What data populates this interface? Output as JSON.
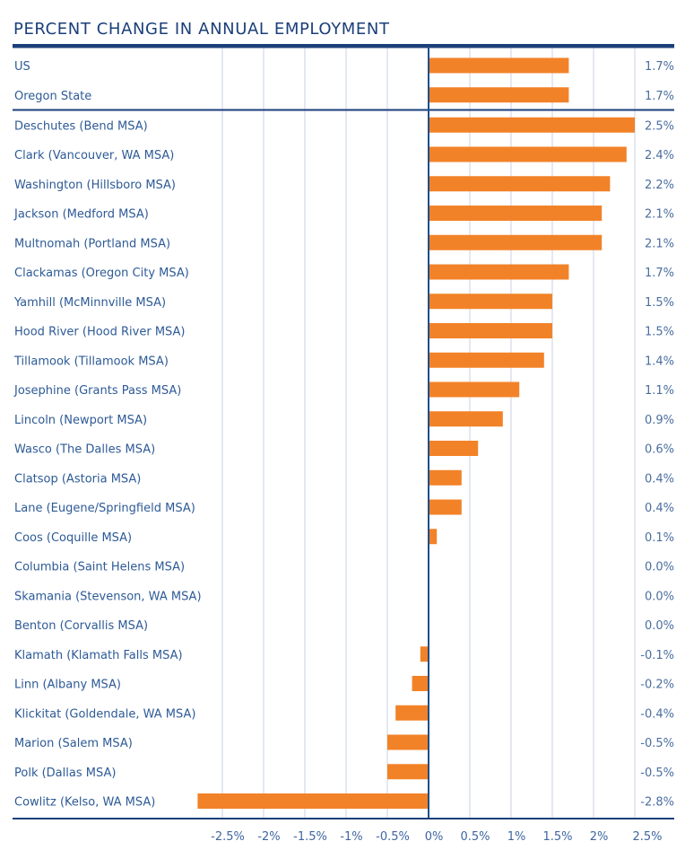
{
  "chart_data": {
    "type": "bar",
    "orientation": "horizontal",
    "title": "PERCENT CHANGE IN ANNUAL EMPLOYMENT",
    "xlabel": "",
    "ylabel": "",
    "xlim": [
      -2.5,
      2.5
    ],
    "x_ticks": [
      -2.5,
      -2,
      -1.5,
      -1,
      -0.5,
      0,
      0.5,
      1,
      1.5,
      2,
      2.5
    ],
    "x_tick_labels": [
      "-2.5%",
      "-2%",
      "-1.5%",
      "-1%",
      "-0.5%",
      "0%",
      "0.5%",
      "1%",
      "1.5%",
      "2%",
      "2.5%"
    ],
    "grid": true,
    "legend": "none",
    "group_separator_after": 2,
    "categories": [
      "US",
      "Oregon State",
      "Deschutes (Bend MSA)",
      "Clark (Vancouver, WA MSA)",
      "Washington (Hillsboro MSA)",
      "Jackson (Medford MSA)",
      "Multnomah (Portland MSA)",
      "Clackamas (Oregon City MSA)",
      "Yamhill (McMinnville MSA)",
      "Hood River (Hood River MSA)",
      "Tillamook (Tillamook MSA)",
      "Josephine (Grants Pass MSA)",
      "Lincoln (Newport MSA)",
      "Wasco (The Dalles MSA)",
      "Clatsop (Astoria MSA)",
      "Lane (Eugene/Springfield MSA)",
      "Coos (Coquille MSA)",
      "Columbia (Saint Helens MSA)",
      "Skamania (Stevenson, WA MSA)",
      "Benton (Corvallis MSA)",
      "Klamath (Klamath Falls MSA)",
      "Linn (Albany MSA)",
      "Klickitat (Goldendale, WA MSA)",
      "Marion (Salem MSA)",
      "Polk (Dallas MSA)",
      "Cowlitz (Kelso, WA MSA)"
    ],
    "values": [
      1.7,
      1.7,
      2.5,
      2.4,
      2.2,
      2.1,
      2.1,
      1.7,
      1.5,
      1.5,
      1.4,
      1.1,
      0.9,
      0.6,
      0.4,
      0.4,
      0.1,
      0.0,
      0.0,
      0.0,
      -0.1,
      -0.2,
      -0.4,
      -0.5,
      -0.5,
      -2.8
    ],
    "value_labels": [
      "1.7%",
      "1.7%",
      "2.5%",
      "2.4%",
      "2.2%",
      "2.1%",
      "2.1%",
      "1.7%",
      "1.5%",
      "1.5%",
      "1.4%",
      "1.1%",
      "0.9%",
      "0.6%",
      "0.4%",
      "0.4%",
      "0.1%",
      "0.0%",
      "0.0%",
      "0.0%",
      "-0.1%",
      "-0.2%",
      "-0.4%",
      "-0.5%",
      "-0.5%",
      "-2.8%"
    ],
    "colors": {
      "bar": "#f28228",
      "rule": "#1b3f7a",
      "zero_axis": "#1f4e8c",
      "grid": "#c9d1e6"
    }
  }
}
